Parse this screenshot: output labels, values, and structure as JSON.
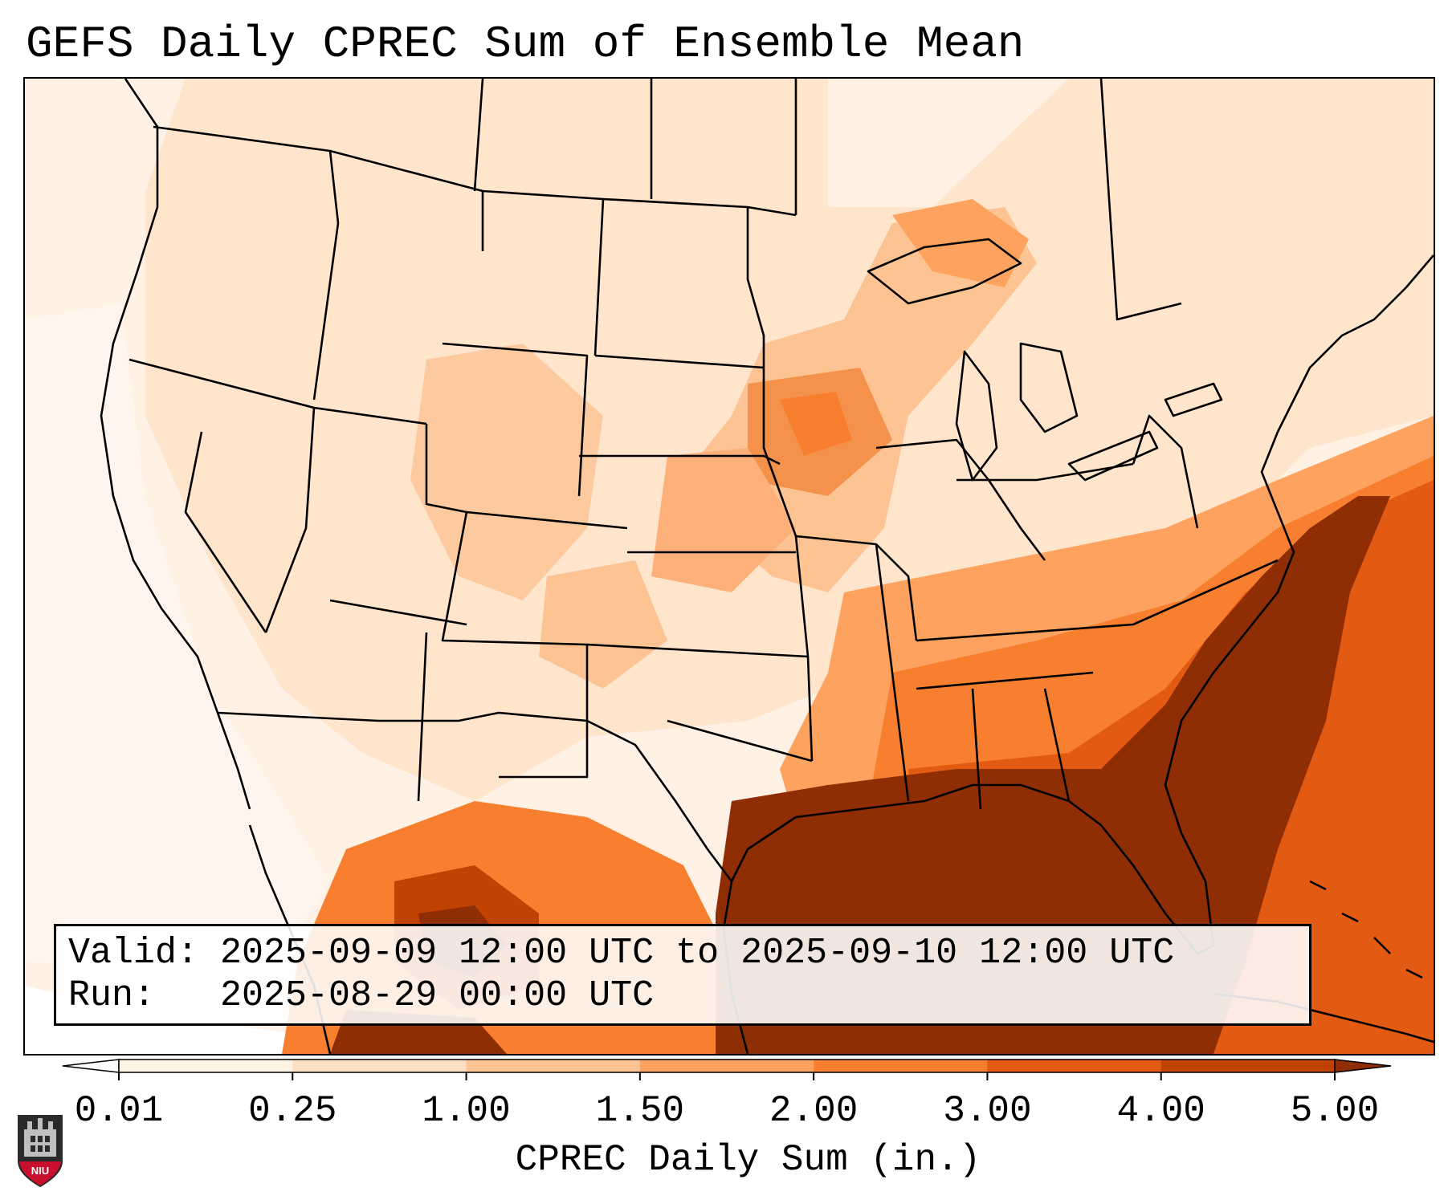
{
  "title": "GEFS Daily CPREC Sum of Ensemble Mean",
  "info": {
    "valid_line": "Valid: 2025-09-09 12:00 UTC to 2025-09-10 12:00 UTC",
    "run_line": "Run:   2025-08-29 00:00 UTC"
  },
  "colorbar": {
    "label": "CPREC Daily Sum (in.)",
    "ticks": [
      "0.01",
      "0.25",
      "1.00",
      "1.50",
      "2.00",
      "3.00",
      "4.00",
      "5.00"
    ],
    "colors": [
      "#fff1e4",
      "#fde0c4",
      "#fdc393",
      "#fda25f",
      "#f77f2f",
      "#e35b12",
      "#c04302",
      "#8f2d04"
    ],
    "extend": "both"
  },
  "logo": {
    "text": "NIU",
    "icon": "niu-castle-logo"
  },
  "map": {
    "projection": "lambert-conformal",
    "region": "continental-us",
    "palette": {
      "none": "#ffffff",
      "low": "#fff1e4",
      "light": "#fde0c4",
      "mid": "#fdc393",
      "moderate": "#fda25f",
      "high": "#f77f2f",
      "heavy": "#e35b12",
      "veryheavy": "#c04302",
      "extreme": "#8f2d04"
    }
  }
}
